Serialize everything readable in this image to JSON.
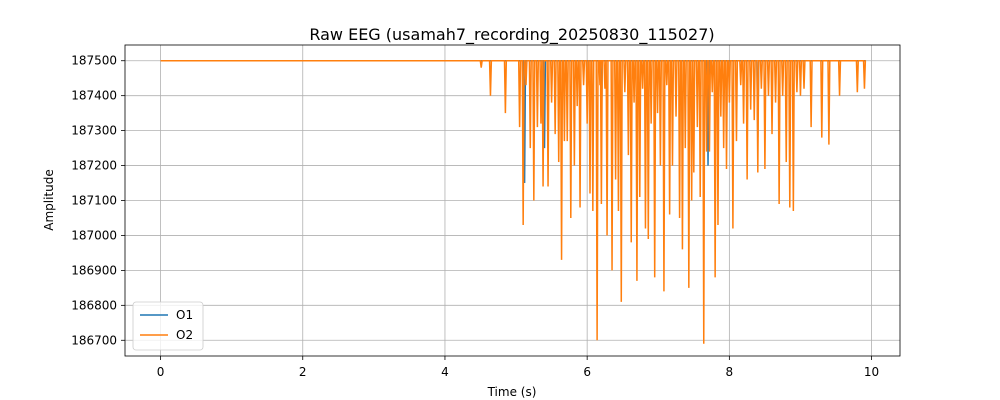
{
  "chart_data": {
    "type": "line",
    "title": "Raw EEG (usamah7_recording_20250830_115027)",
    "xlabel": "Time (s)",
    "ylabel": "Amplitude",
    "xlim": [
      -0.5,
      10.4
    ],
    "ylim": [
      186655,
      187545
    ],
    "x_ticks": [
      0,
      2,
      4,
      6,
      8,
      10
    ],
    "y_ticks": [
      186700,
      186800,
      186900,
      187000,
      187100,
      187200,
      187300,
      187400,
      187500
    ],
    "grid": true,
    "legend_position": "lower-left",
    "series": [
      {
        "name": "O1",
        "color": "#1f77b4",
        "baseline": 187500,
        "x_range": [
          0,
          9.92
        ],
        "dips": [
          [
            5.12,
            187150
          ],
          [
            5.4,
            187250
          ],
          [
            6.2,
            187300
          ],
          [
            7.7,
            187200
          ],
          [
            8.4,
            187280
          ]
        ]
      },
      {
        "name": "O2",
        "color": "#ff7f0e",
        "baseline": 187500,
        "x_range": [
          0,
          9.92
        ],
        "dips": [
          [
            4.51,
            187480
          ],
          [
            4.64,
            187400
          ],
          [
            4.85,
            187350
          ],
          [
            5.05,
            187310
          ],
          [
            5.1,
            187030
          ],
          [
            5.14,
            187430
          ],
          [
            5.2,
            187250
          ],
          [
            5.25,
            187100
          ],
          [
            5.3,
            187310
          ],
          [
            5.35,
            187320
          ],
          [
            5.38,
            187140
          ],
          [
            5.45,
            187140
          ],
          [
            5.5,
            187380
          ],
          [
            5.55,
            187290
          ],
          [
            5.6,
            187210
          ],
          [
            5.64,
            186930
          ],
          [
            5.68,
            187270
          ],
          [
            5.72,
            187270
          ],
          [
            5.77,
            187050
          ],
          [
            5.82,
            187200
          ],
          [
            5.86,
            187370
          ],
          [
            5.9,
            187080
          ],
          [
            5.95,
            187430
          ],
          [
            6.0,
            187320
          ],
          [
            6.04,
            187120
          ],
          [
            6.08,
            187070
          ],
          [
            6.14,
            186700
          ],
          [
            6.18,
            187430
          ],
          [
            6.2,
            187090
          ],
          [
            6.25,
            187420
          ],
          [
            6.28,
            187000
          ],
          [
            6.35,
            186900
          ],
          [
            6.4,
            187160
          ],
          [
            6.44,
            187070
          ],
          [
            6.48,
            186810
          ],
          [
            6.53,
            187410
          ],
          [
            6.58,
            187230
          ],
          [
            6.62,
            186980
          ],
          [
            6.66,
            187380
          ],
          [
            6.7,
            186870
          ],
          [
            6.74,
            187110
          ],
          [
            6.78,
            187420
          ],
          [
            6.82,
            187020
          ],
          [
            6.86,
            186990
          ],
          [
            6.9,
            187320
          ],
          [
            6.95,
            186880
          ],
          [
            6.99,
            187350
          ],
          [
            7.03,
            187200
          ],
          [
            7.08,
            186840
          ],
          [
            7.12,
            187430
          ],
          [
            7.16,
            187060
          ],
          [
            7.2,
            187200
          ],
          [
            7.25,
            187340
          ],
          [
            7.3,
            187050
          ],
          [
            7.34,
            186960
          ],
          [
            7.38,
            187250
          ],
          [
            7.43,
            186850
          ],
          [
            7.47,
            187100
          ],
          [
            7.5,
            187180
          ],
          [
            7.55,
            187310
          ],
          [
            7.59,
            187110
          ],
          [
            7.64,
            186690
          ],
          [
            7.68,
            187240
          ],
          [
            7.72,
            187240
          ],
          [
            7.76,
            187410
          ],
          [
            7.8,
            186880
          ],
          [
            7.84,
            187030
          ],
          [
            7.88,
            187340
          ],
          [
            7.92,
            187250
          ],
          [
            7.96,
            187190
          ],
          [
            8.0,
            187380
          ],
          [
            8.05,
            187020
          ],
          [
            8.1,
            187270
          ],
          [
            8.16,
            187430
          ],
          [
            8.2,
            187320
          ],
          [
            8.25,
            187160
          ],
          [
            8.3,
            187360
          ],
          [
            8.35,
            187330
          ],
          [
            8.4,
            187180
          ],
          [
            8.45,
            187420
          ],
          [
            8.5,
            187190
          ],
          [
            8.55,
            187400
          ],
          [
            8.6,
            187290
          ],
          [
            8.65,
            187380
          ],
          [
            8.7,
            187090
          ],
          [
            8.75,
            187400
          ],
          [
            8.8,
            187210
          ],
          [
            8.85,
            187080
          ],
          [
            8.9,
            187070
          ],
          [
            8.95,
            187410
          ],
          [
            9.0,
            187400
          ],
          [
            9.05,
            187420
          ],
          [
            9.15,
            187310
          ],
          [
            9.3,
            187280
          ],
          [
            9.4,
            187260
          ],
          [
            9.55,
            187400
          ],
          [
            9.8,
            187410
          ],
          [
            9.9,
            187420
          ]
        ]
      }
    ]
  }
}
